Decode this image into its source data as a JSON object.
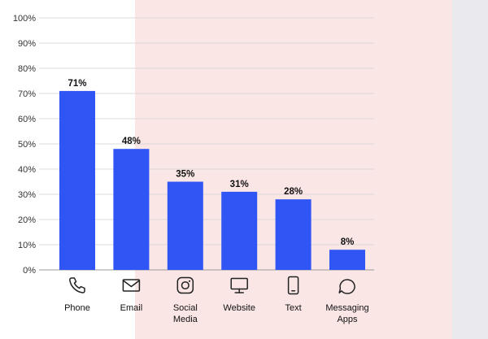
{
  "chart_data": {
    "type": "bar",
    "categories": [
      {
        "lines": [
          "Phone"
        ],
        "icon": "phone-icon"
      },
      {
        "lines": [
          "Email"
        ],
        "icon": "email-icon"
      },
      {
        "lines": [
          "Social",
          "Media"
        ],
        "icon": "instagram-icon"
      },
      {
        "lines": [
          "Website"
        ],
        "icon": "monitor-icon"
      },
      {
        "lines": [
          "Text"
        ],
        "icon": "smartphone-icon"
      },
      {
        "lines": [
          "Messaging",
          "Apps"
        ],
        "icon": "chat-bubble-icon"
      }
    ],
    "values": [
      71,
      48,
      35,
      31,
      28,
      8
    ],
    "value_labels": [
      "71%",
      "48%",
      "35%",
      "31%",
      "28%",
      "8%"
    ],
    "yticks": [
      0,
      10,
      20,
      30,
      40,
      50,
      60,
      70,
      80,
      90,
      100
    ],
    "ytick_labels": [
      "0%",
      "10%",
      "20%",
      "30%",
      "40%",
      "50%",
      "60%",
      "70%",
      "80%",
      "90%",
      "100%"
    ],
    "ylim": [
      0,
      100
    ],
    "grid": true,
    "colors": {
      "bar": "#2f55f5",
      "grid": "#cfcfcf",
      "axis": "#999999"
    }
  }
}
